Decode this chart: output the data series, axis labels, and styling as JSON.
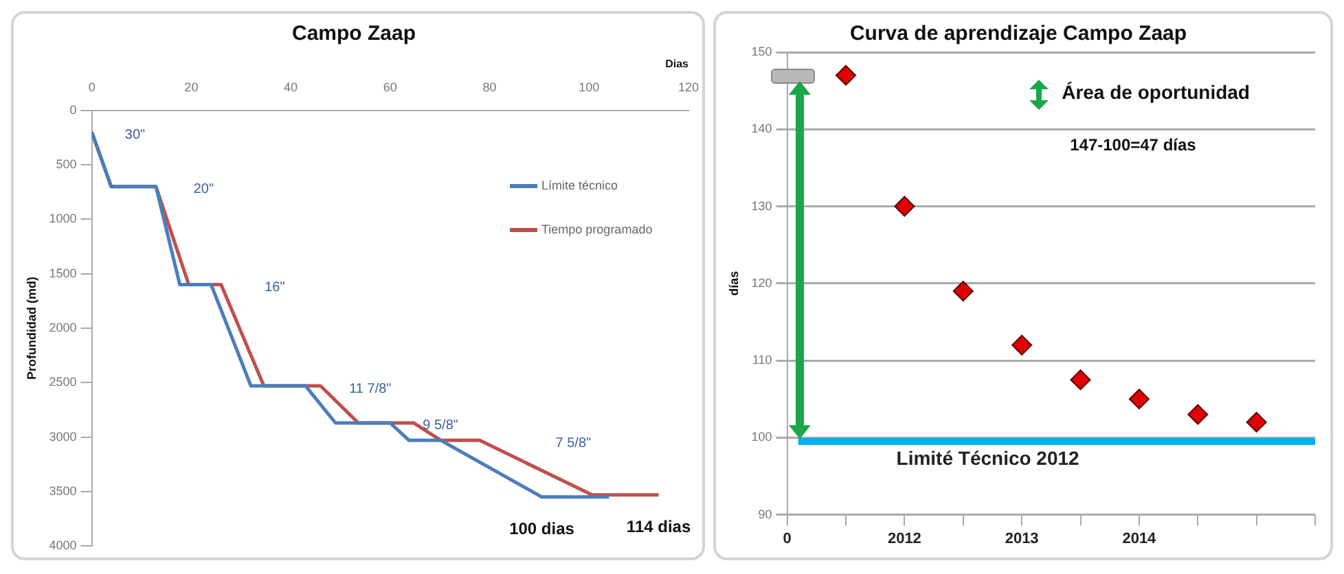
{
  "chart_data": [
    {
      "type": "line",
      "title": "Campo Zaap",
      "xlabel": "Dias",
      "ylabel": "Profundidad (md)",
      "xlim": [
        0,
        120
      ],
      "xticks": [
        0,
        20,
        40,
        60,
        80,
        100,
        120
      ],
      "ylim": [
        4000,
        0
      ],
      "yticks": [
        0,
        500,
        1000,
        1500,
        2000,
        2500,
        3000,
        3500,
        4000
      ],
      "legend": "top right",
      "marker": "none",
      "line_style": "solid",
      "series": [
        {
          "name": "Límite técnico",
          "color": "#4a7ebb",
          "x": [
            0,
            3.9,
            12.9,
            17.7,
            24,
            32,
            43,
            49,
            60,
            63.8,
            70.2,
            90.5,
            104
          ],
          "values": [
            200,
            700,
            700,
            1600,
            1600,
            2530,
            2530,
            2870,
            2870,
            3030,
            3030,
            3550,
            3550
          ]
        },
        {
          "name": "Tiempo programado",
          "color": "#c0504d",
          "x": [
            0,
            3.9,
            12.9,
            19.5,
            26,
            34.6,
            46,
            53.6,
            64.7,
            70.2,
            78,
            100.6,
            114
          ],
          "values": [
            200,
            700,
            700,
            1600,
            1600,
            2530,
            2530,
            2870,
            2870,
            3030,
            3030,
            3530,
            3530
          ]
        }
      ],
      "annotations": [
        "30\"",
        "20\"",
        "16\"",
        "11 7/8\"",
        "9 5/8\"",
        "7 5/8\"",
        "100 dias",
        "114 dias"
      ]
    },
    {
      "type": "scatter",
      "title": "Curva de aprendizaje Campo Zaap",
      "ylabel": "días",
      "categories": [
        "0",
        null,
        "2012",
        null,
        "2013",
        null,
        "2014",
        null,
        null,
        null
      ],
      "ylim": [
        90,
        150
      ],
      "yticks": [
        90,
        100,
        110,
        120,
        130,
        140,
        150
      ],
      "grid": "y",
      "marker": "diamond",
      "series": [
        {
          "color": "#e00000",
          "values": [
            null,
            147,
            130,
            119,
            112,
            107.5,
            105,
            103,
            102,
            null
          ]
        }
      ],
      "ref_lines": [
        {
          "axis": "y",
          "value": 99.5,
          "label": "Limité Técnico 2012",
          "color": "#00b0f0"
        }
      ],
      "annotations": [
        "Área de oportunidad",
        "147-100=47 días"
      ]
    }
  ]
}
